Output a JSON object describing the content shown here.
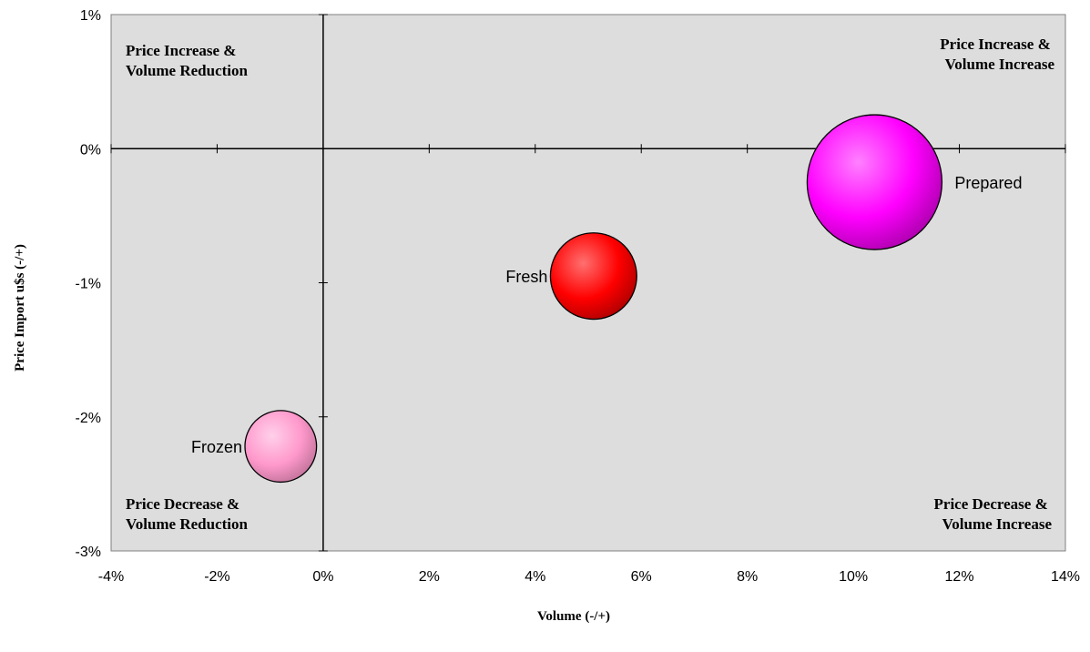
{
  "chart_data": {
    "type": "bubble",
    "title": "",
    "xlabel": "Volume  (-/+)",
    "ylabel": "Price Import u$s  (-/+)",
    "xlim": [
      -4,
      14
    ],
    "ylim": [
      -3,
      1
    ],
    "x_ticks": [
      -4,
      -2,
      0,
      2,
      4,
      6,
      8,
      10,
      12,
      14
    ],
    "y_ticks": [
      1,
      0,
      -1,
      -2,
      -3
    ],
    "x_tick_labels": [
      "-4%",
      "-2%",
      "0%",
      "2%",
      "4%",
      "6%",
      "8%",
      "10%",
      "12%",
      "14%"
    ],
    "y_tick_labels": [
      "1%",
      "0%",
      "-1%",
      "-2%",
      "-3%"
    ],
    "grid": false,
    "quadrant_labels": [
      {
        "line1": "Price Increase &",
        "line2": "Volume Reduction",
        "position": "top-left"
      },
      {
        "line1": "Price Increase &",
        "line2": "Volume Increase",
        "position": "top-right"
      },
      {
        "line1": "Price Decrease &",
        "line2": "Volume Reduction",
        "position": "bottom-left"
      },
      {
        "line1": "Price Decrease &",
        "line2": "Volume Increase",
        "position": "bottom-right"
      }
    ],
    "series": [
      {
        "name": "Frozen",
        "x": -0.8,
        "y": -2.22,
        "size": 0.55,
        "color": "#ff99cc"
      },
      {
        "name": "Fresh",
        "x": 5.1,
        "y": -0.95,
        "size": 0.8,
        "color": "#ff0000"
      },
      {
        "name": "Prepared",
        "x": 10.4,
        "y": -0.25,
        "size": 1.95,
        "color": "#ff00ff"
      }
    ],
    "plot_background": "#dddddd"
  }
}
